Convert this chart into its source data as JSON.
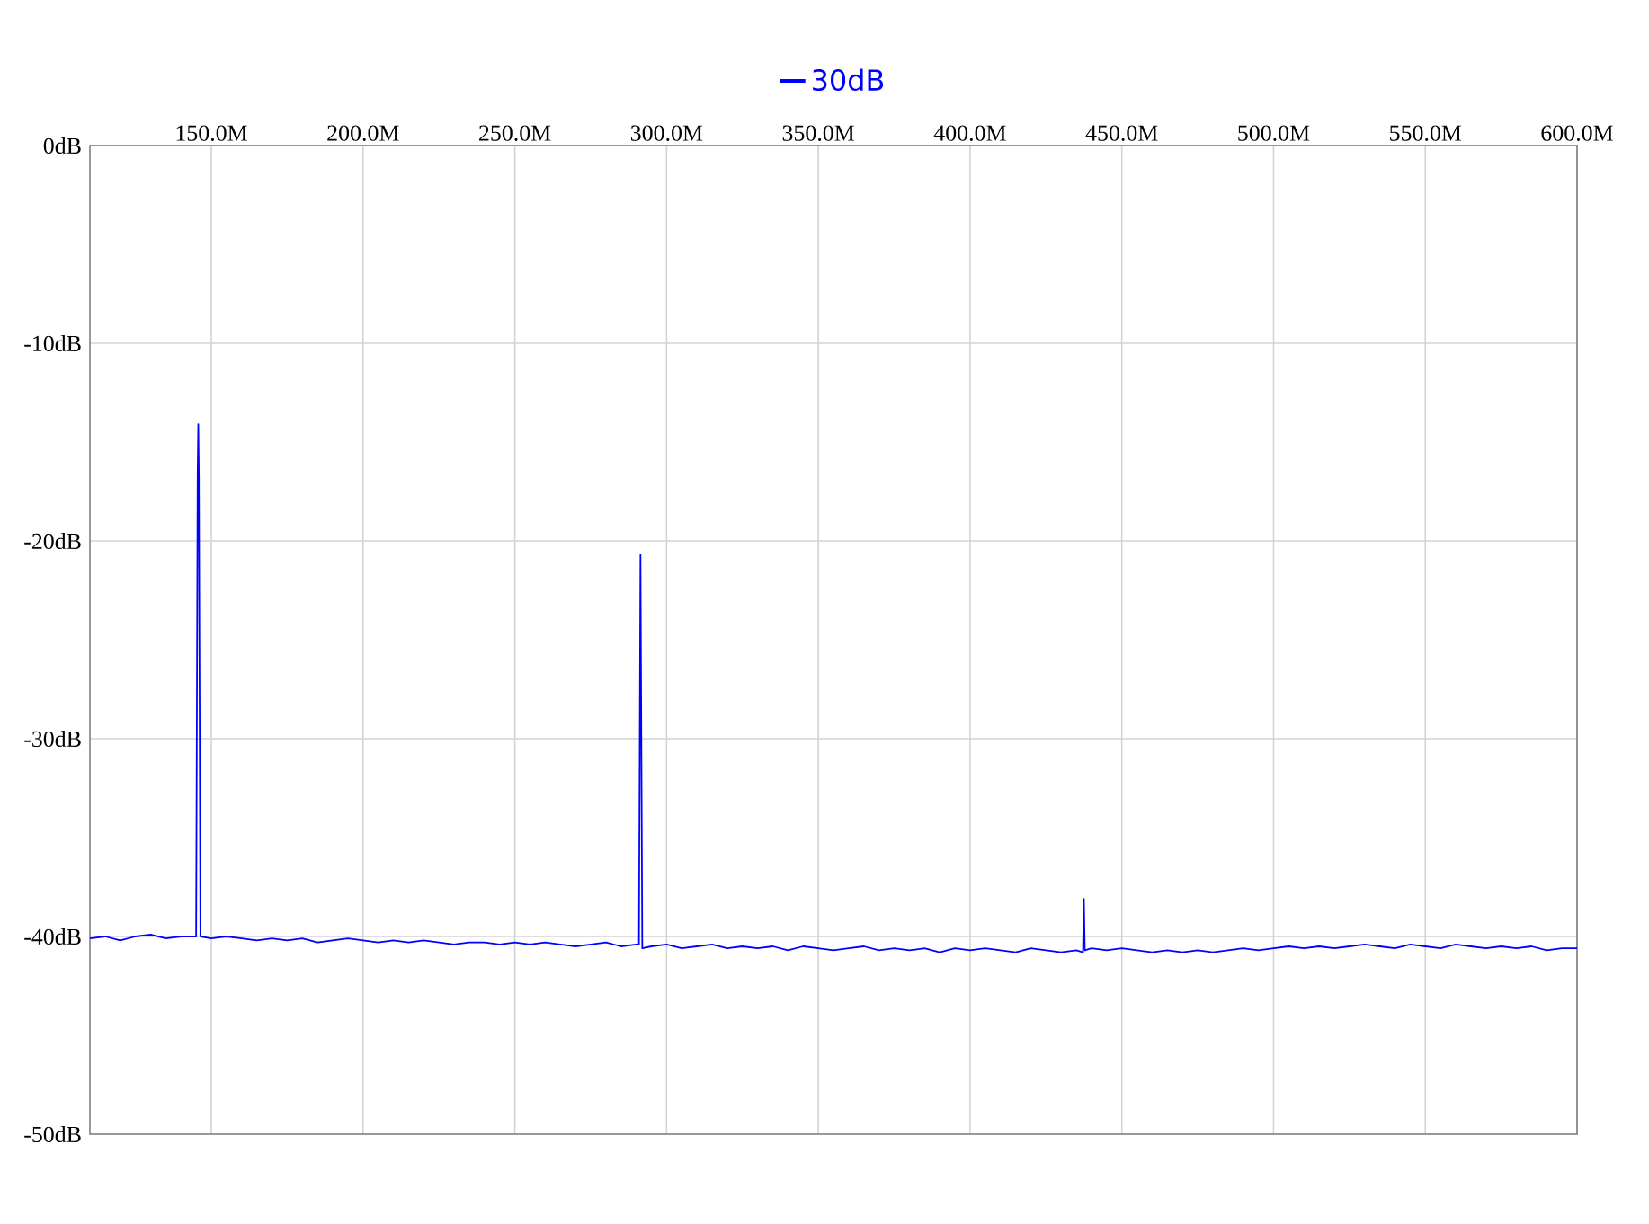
{
  "chart_data": {
    "type": "line",
    "legend": "top",
    "grid": true,
    "xlim": [
      110,
      600
    ],
    "xticks": [
      {
        "value": 150,
        "label": "150.0M"
      },
      {
        "value": 200,
        "label": "200.0M"
      },
      {
        "value": 250,
        "label": "250.0M"
      },
      {
        "value": 300,
        "label": "300.0M"
      },
      {
        "value": 350,
        "label": "350.0M"
      },
      {
        "value": 400,
        "label": "400.0M"
      },
      {
        "value": 450,
        "label": "450.0M"
      },
      {
        "value": 500,
        "label": "500.0M"
      },
      {
        "value": 550,
        "label": "550.0M"
      },
      {
        "value": 600,
        "label": "600.0M"
      }
    ],
    "ylim": [
      -50,
      0
    ],
    "yticks": [
      {
        "value": -50,
        "label": "-50dB"
      },
      {
        "value": -40,
        "label": "-40dB"
      },
      {
        "value": -30,
        "label": "-30dB"
      },
      {
        "value": -20,
        "label": "-20dB"
      },
      {
        "value": -10,
        "label": "-10dB"
      },
      {
        "value": 0,
        "label": "0dB"
      }
    ],
    "x": [
      110,
      115,
      120,
      125,
      130,
      135,
      140,
      145.0,
      145.5,
      145.7,
      145.9,
      146.4,
      150,
      155,
      160,
      165,
      170,
      175,
      180,
      185,
      190,
      195,
      200,
      205,
      210,
      215,
      220,
      225,
      230,
      235,
      240,
      245,
      250,
      255,
      260,
      265,
      270,
      275,
      280,
      285,
      290,
      290.9,
      291.4,
      292.0,
      295,
      300,
      305,
      310,
      315,
      320,
      325,
      330,
      335,
      340,
      345,
      350,
      355,
      360,
      365,
      370,
      375,
      380,
      385,
      390,
      395,
      400,
      405,
      410,
      415,
      420,
      425,
      430,
      435,
      437.2,
      437.5,
      437.8,
      440,
      445,
      450,
      455,
      460,
      465,
      470,
      475,
      480,
      485,
      490,
      495,
      500,
      505,
      510,
      515,
      520,
      525,
      530,
      535,
      540,
      545,
      550,
      555,
      560,
      565,
      570,
      575,
      580,
      585,
      590,
      595,
      600
    ],
    "series": [
      {
        "name": "30dB",
        "color": "#0000ff",
        "values": [
          -40.1,
          -40.0,
          -40.2,
          -40.0,
          -39.9,
          -40.1,
          -40.0,
          -40.0,
          -16.6,
          -14.1,
          -16.8,
          -40.0,
          -40.1,
          -40.0,
          -40.1,
          -40.2,
          -40.1,
          -40.2,
          -40.1,
          -40.3,
          -40.2,
          -40.1,
          -40.2,
          -40.3,
          -40.2,
          -40.3,
          -40.2,
          -40.3,
          -40.4,
          -40.3,
          -40.3,
          -40.4,
          -40.3,
          -40.4,
          -40.3,
          -40.4,
          -40.5,
          -40.4,
          -40.3,
          -40.5,
          -40.4,
          -40.4,
          -20.7,
          -40.6,
          -40.5,
          -40.4,
          -40.6,
          -40.5,
          -40.4,
          -40.6,
          -40.5,
          -40.6,
          -40.5,
          -40.7,
          -40.5,
          -40.6,
          -40.7,
          -40.6,
          -40.5,
          -40.7,
          -40.6,
          -40.7,
          -40.6,
          -40.8,
          -40.6,
          -40.7,
          -40.6,
          -40.7,
          -40.8,
          -40.6,
          -40.7,
          -40.8,
          -40.7,
          -40.8,
          -38.1,
          -40.7,
          -40.6,
          -40.7,
          -40.6,
          -40.7,
          -40.8,
          -40.7,
          -40.8,
          -40.7,
          -40.8,
          -40.7,
          -40.6,
          -40.7,
          -40.6,
          -40.5,
          -40.6,
          -40.5,
          -40.6,
          -40.5,
          -40.4,
          -40.5,
          -40.6,
          -40.4,
          -40.5,
          -40.6,
          -40.4,
          -40.5,
          -40.6,
          -40.5,
          -40.6,
          -40.5,
          -40.7,
          -40.6,
          -40.6
        ]
      }
    ]
  }
}
